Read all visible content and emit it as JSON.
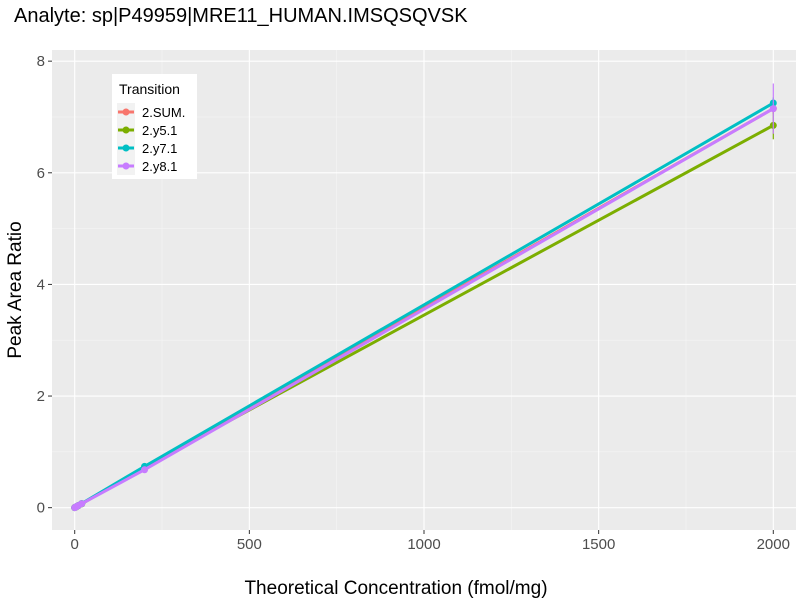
{
  "chart_data": {
    "type": "line",
    "title": "Analyte: sp|P49959|MRE11_HUMAN.IMSQSQVSK",
    "xlabel": "Theoretical Concentration (fmol/mg)",
    "ylabel": "Peak Area Ratio",
    "xlim": [
      -65,
      2065
    ],
    "ylim": [
      -0.4,
      8.2
    ],
    "x_ticks": [
      0,
      500,
      1000,
      1500,
      2000
    ],
    "x_tick_labels": [
      "0",
      "500",
      "1000",
      "1500",
      "2000"
    ],
    "y_ticks": [
      0,
      2,
      4,
      6,
      8
    ],
    "y_tick_labels": [
      "0",
      "2",
      "4",
      "6",
      "8"
    ],
    "grid": true,
    "legend": {
      "title": "Transition",
      "position": "top-left inside"
    },
    "x": [
      0,
      2,
      5,
      10,
      20,
      200,
      2000
    ],
    "series": [
      {
        "name": "2.SUM.",
        "color": "#F8766D",
        "values": [
          0.0,
          0.007,
          0.018,
          0.036,
          0.072,
          0.72,
          7.15
        ],
        "error": [
          0,
          0,
          0,
          0,
          0,
          0.03,
          0.1
        ]
      },
      {
        "name": "2.y5.1",
        "color": "#7CAE00",
        "values": [
          0.0,
          0.007,
          0.017,
          0.034,
          0.068,
          0.73,
          6.85
        ],
        "error": [
          0,
          0,
          0,
          0,
          0,
          0.03,
          0.25
        ]
      },
      {
        "name": "2.y7.1",
        "color": "#00BFC4",
        "values": [
          0.0,
          0.007,
          0.018,
          0.036,
          0.073,
          0.74,
          7.25
        ],
        "error": [
          0,
          0,
          0,
          0,
          0,
          0.03,
          0.1
        ]
      },
      {
        "name": "2.y8.1",
        "color": "#C77CFF",
        "values": [
          0.0,
          0.007,
          0.018,
          0.036,
          0.071,
          0.68,
          7.15
        ],
        "error": [
          0,
          0,
          0,
          0,
          0,
          0.03,
          0.45
        ]
      }
    ]
  }
}
